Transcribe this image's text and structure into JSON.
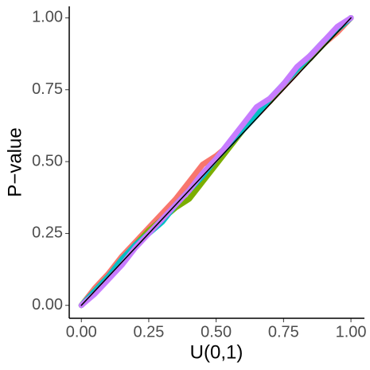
{
  "chart_data": {
    "type": "line",
    "xlabel": "U(0,1)",
    "ylabel": "P−value",
    "xlim": [
      -0.045,
      1.05
    ],
    "ylim": [
      -0.045,
      1.04
    ],
    "xticks": [
      {
        "value": 0,
        "label": "0.00"
      },
      0.25,
      {
        "value": 0.5,
        "label": "0.50"
      },
      0.75,
      {
        "value": 1,
        "label": "1.00"
      }
    ],
    "yticks": [
      {
        "value": 0,
        "label": "0.00"
      },
      0.25,
      {
        "value": 0.5,
        "label": "0.50"
      },
      0.75,
      {
        "value": 1,
        "label": "1.00"
      }
    ],
    "grid": false,
    "x": [
      0,
      0.05,
      0.1,
      0.15,
      0.2,
      0.25,
      0.3,
      0.35,
      0.4,
      0.45,
      0.5,
      0.55,
      0.6,
      0.65,
      0.7,
      0.75,
      0.8,
      0.85,
      0.9,
      0.95,
      1
    ],
    "series": [
      {
        "color": "#F8766D",
        "values": [
          0,
          0.06,
          0.11,
          0.17,
          0.22,
          0.27,
          0.32,
          0.37,
          0.43,
          0.49,
          0.52,
          0.56,
          0.61,
          0.66,
          0.71,
          0.76,
          0.81,
          0.87,
          0.91,
          0.95,
          1
        ]
      },
      {
        "color": "#7CAE00",
        "values": [
          0,
          0.05,
          0.1,
          0.15,
          0.21,
          0.26,
          0.3,
          0.34,
          0.37,
          0.43,
          0.49,
          0.55,
          0.61,
          0.67,
          0.71,
          0.77,
          0.82,
          0.86,
          0.91,
          0.96,
          1
        ]
      },
      {
        "color": "#00BFC4",
        "values": [
          0,
          0.05,
          0.1,
          0.16,
          0.21,
          0.25,
          0.29,
          0.35,
          0.4,
          0.45,
          0.51,
          0.56,
          0.61,
          0.66,
          0.72,
          0.77,
          0.82,
          0.87,
          0.92,
          0.96,
          1
        ]
      },
      {
        "color": "#C77CFF",
        "values": [
          0,
          0.04,
          0.09,
          0.14,
          0.2,
          0.25,
          0.3,
          0.35,
          0.4,
          0.46,
          0.51,
          0.57,
          0.63,
          0.69,
          0.72,
          0.77,
          0.83,
          0.87,
          0.92,
          0.97,
          1
        ]
      }
    ],
    "reference_line": {
      "x": [
        0,
        1
      ],
      "values": [
        0,
        1
      ],
      "color": "#000000"
    }
  }
}
